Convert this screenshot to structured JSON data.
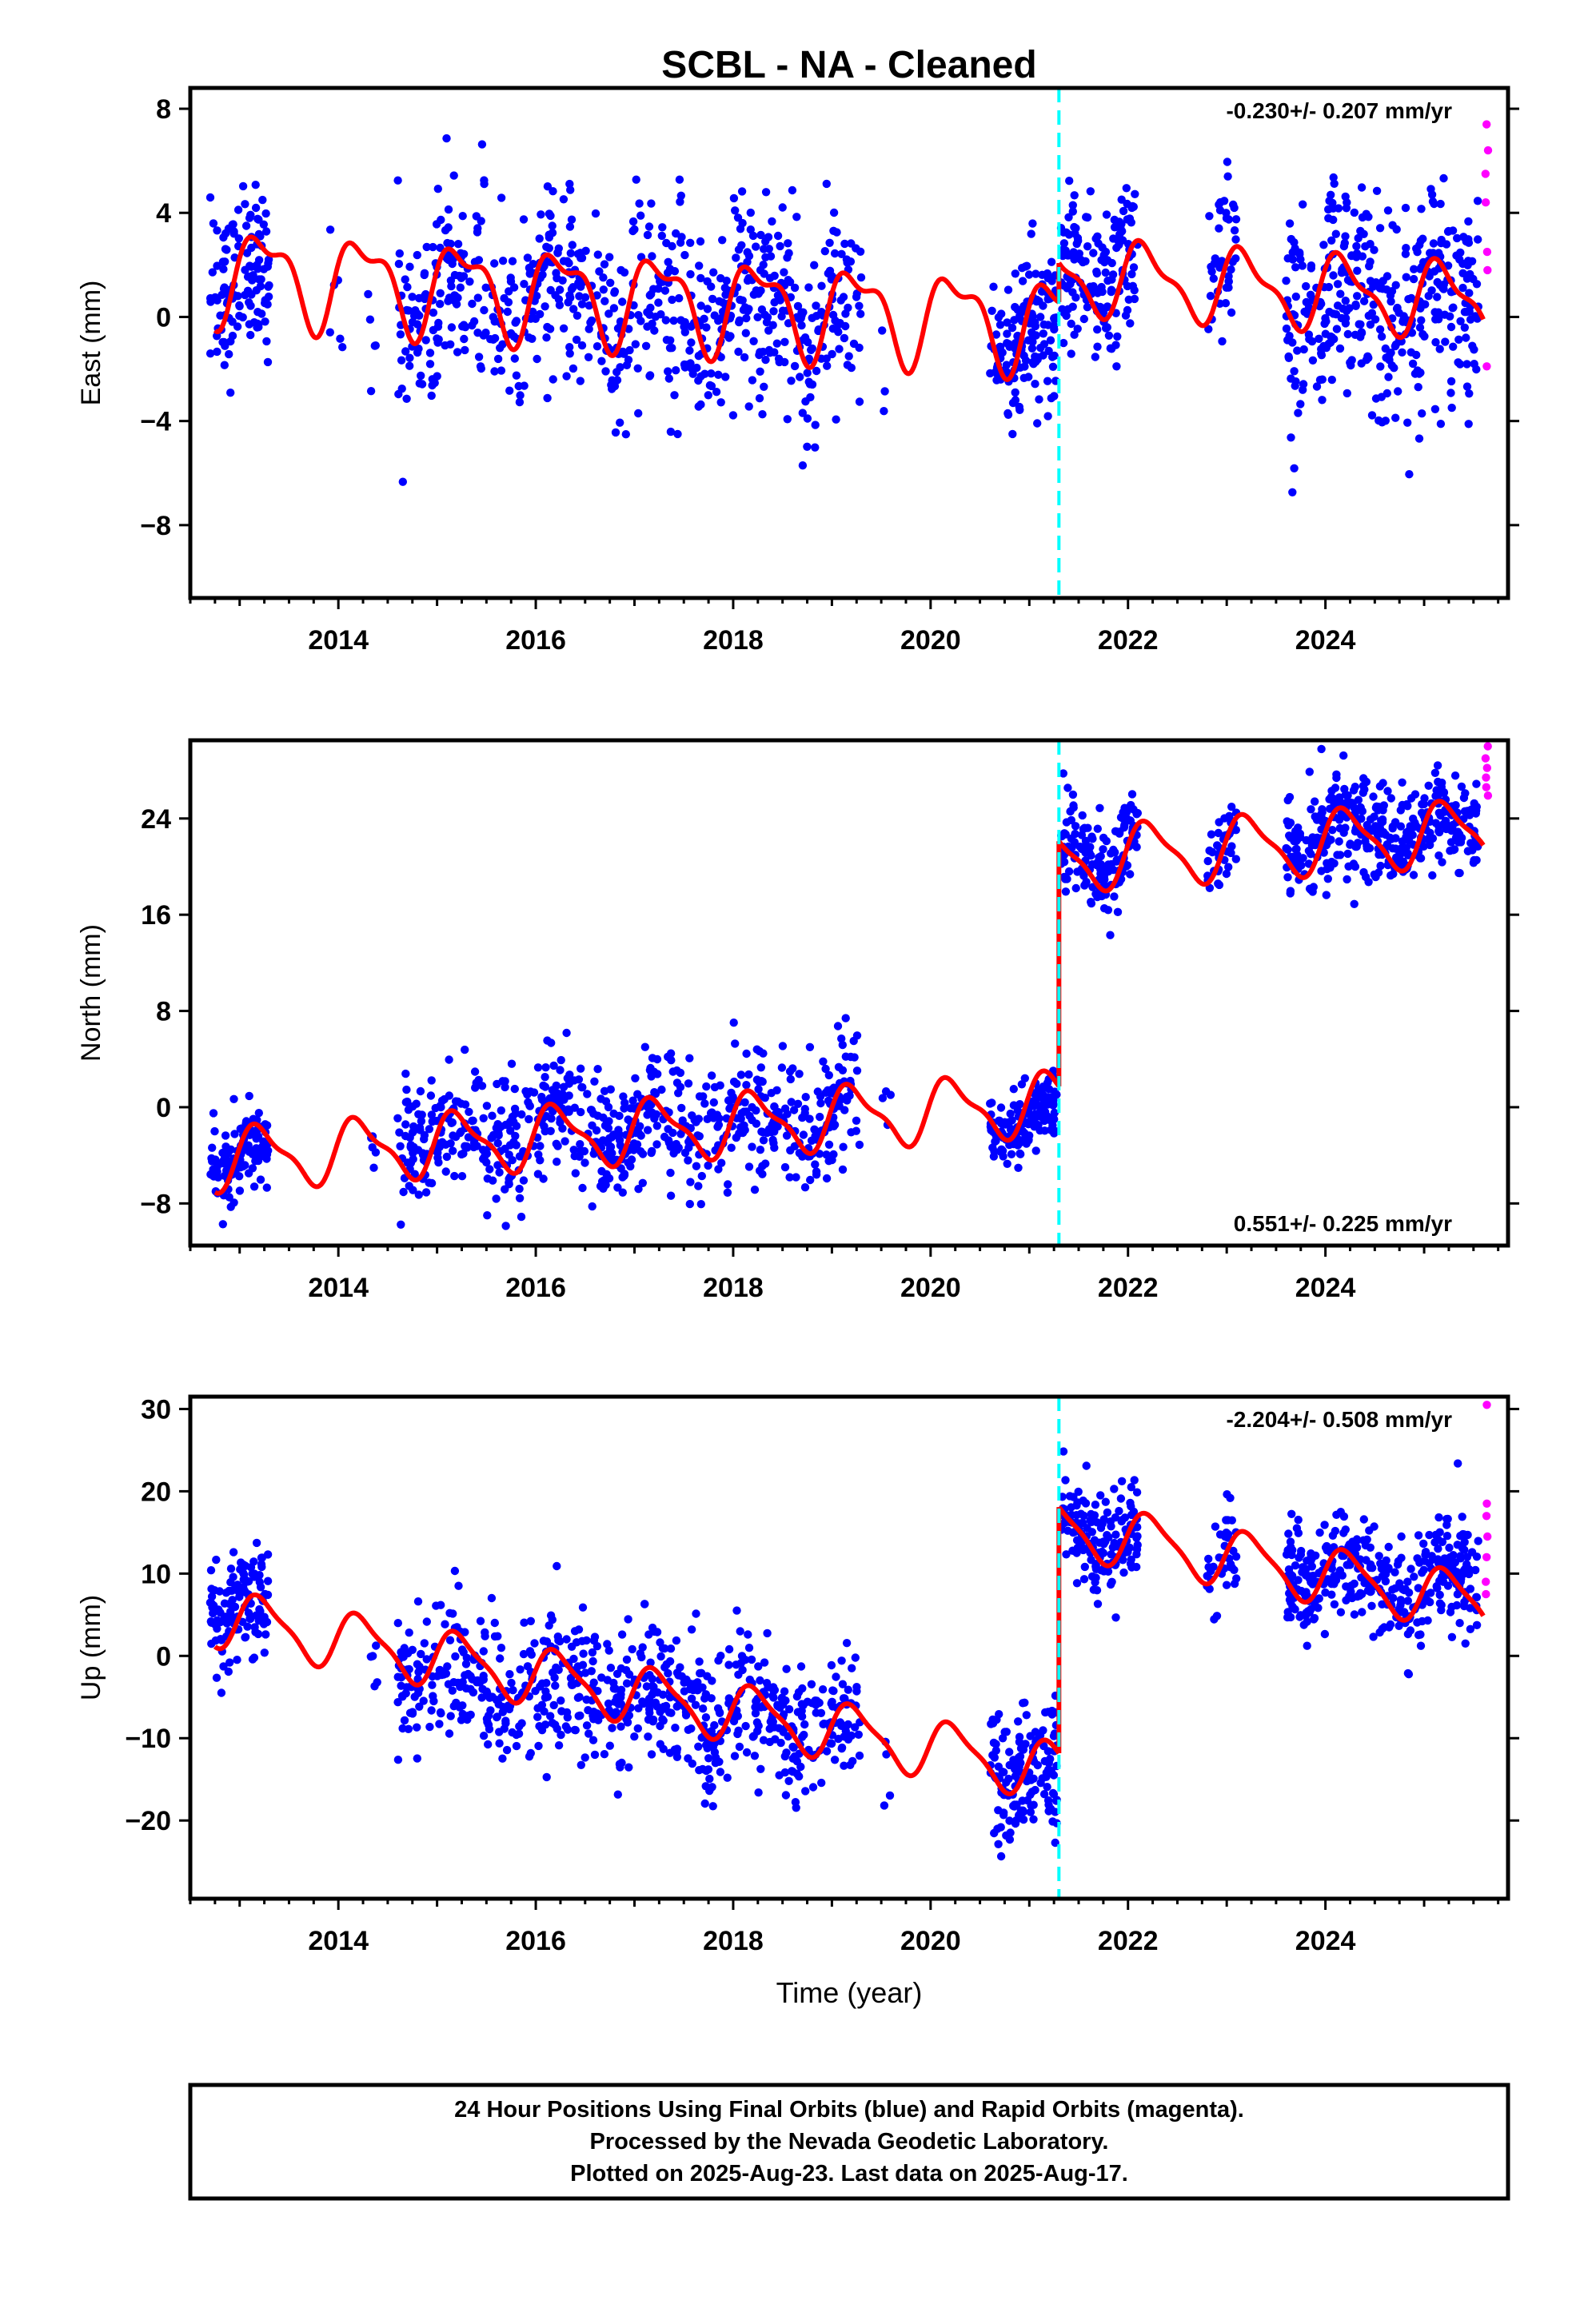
{
  "chart_data": {
    "type": "scatter",
    "title": "SCBL  - NA - Cleaned",
    "xlabel": "Time (year)",
    "xlim": [
      2012.5,
      2025.85
    ],
    "xticks": [
      2014,
      2016,
      2018,
      2020,
      2022,
      2024
    ],
    "event_line": {
      "x": 2021.3,
      "color": "#00ffff",
      "style": "dashed"
    },
    "colors": {
      "final": "#0000ff",
      "rapid": "#ff00ff",
      "model": "#ff0000"
    },
    "panels": [
      {
        "id": "east",
        "ylabel": "East (mm)",
        "ylim": [
          -10.8,
          8.8
        ],
        "yticks": [
          8,
          4,
          0,
          -4,
          -8
        ],
        "rate": "-0.230+/- 0.207 mm/yr",
        "rate_pos": "top-right",
        "model_segments": [
          {
            "x0": 2012.75,
            "x1": 2021.3,
            "a": 0.5,
            "b": -0.23,
            "t0": 2018,
            "harmonics": [
              {
                "c": 1.6,
                "p": 1.0,
                "f": 0.0
              },
              {
                "c": 0.7,
                "p": 0.5,
                "f": 1.1
              }
            ]
          },
          {
            "x0": 2021.3,
            "x1": 2025.6,
            "a": 1.2,
            "b": -0.23,
            "t0": 2023,
            "harmonics": [
              {
                "c": 1.3,
                "p": 1.0,
                "f": 0.4
              },
              {
                "c": 0.5,
                "p": 0.5,
                "f": 0.9
              }
            ]
          }
        ],
        "final_data": [
          {
            "from": 2012.7,
            "to": 2013.3,
            "count": 120,
            "base": 1.2,
            "spread": 1.6
          },
          {
            "from": 2013.9,
            "to": 2014.1,
            "count": 6,
            "base": -1.5,
            "spread": 2.5
          },
          {
            "from": 2014.3,
            "to": 2014.4,
            "count": 5,
            "base": -3.5,
            "spread": 2.0
          },
          {
            "from": 2014.6,
            "to": 2019.3,
            "count": 700,
            "base": -0.2,
            "spread": 1.8
          },
          {
            "from": 2019.5,
            "to": 2019.6,
            "count": 3,
            "base": -2.0,
            "spread": 3.0
          },
          {
            "from": 2020.6,
            "to": 2021.28,
            "count": 150,
            "base": -1.0,
            "spread": 1.5
          },
          {
            "from": 2021.32,
            "to": 2022.1,
            "count": 160,
            "base": 2.0,
            "spread": 1.6
          },
          {
            "from": 2022.8,
            "to": 2023.1,
            "count": 40,
            "base": 2.5,
            "spread": 1.6
          },
          {
            "from": 2023.6,
            "to": 2025.55,
            "count": 380,
            "base": 0.0,
            "spread": 2.0
          }
        ],
        "rapid_values": [
          7.4,
          6.4,
          5.5,
          4.4,
          2.5,
          1.8,
          -1.9
        ]
      },
      {
        "id": "north",
        "ylabel": "North (mm)",
        "ylim": [
          -11.5,
          30.5
        ],
        "yticks": [
          24,
          16,
          8,
          0,
          -8
        ],
        "rate": "0.551+/- 0.225 mm/yr",
        "rate_pos": "bottom-right",
        "model_segments": [
          {
            "x0": 2012.75,
            "x1": 2021.3,
            "a": -2.0,
            "b": 0.551,
            "t0": 2017,
            "harmonics": [
              {
                "c": 2.4,
                "p": 1.0,
                "f": 0.2
              },
              {
                "c": 0.8,
                "p": 0.5,
                "f": 0.5
              }
            ]
          },
          {
            "x0": 2021.3,
            "x1": 2025.6,
            "a": 21.5,
            "b": 0.551,
            "t0": 2023,
            "harmonics": [
              {
                "c": 2.5,
                "p": 1.0,
                "f": 0.2
              },
              {
                "c": 0.7,
                "p": 0.5,
                "f": 0.5
              }
            ]
          }
        ],
        "final_data": [
          {
            "from": 2012.7,
            "to": 2013.3,
            "count": 120,
            "base": -4.5,
            "spread": 1.6
          },
          {
            "from": 2014.3,
            "to": 2014.4,
            "count": 5,
            "base": -3.5,
            "spread": 1.5
          },
          {
            "from": 2014.6,
            "to": 2019.3,
            "count": 700,
            "base": -1.0,
            "spread": 2.6
          },
          {
            "from": 2019.5,
            "to": 2019.6,
            "count": 4,
            "base": 2.5,
            "spread": 1.5
          },
          {
            "from": 2020.6,
            "to": 2021.28,
            "count": 150,
            "base": -2.0,
            "spread": 1.5
          },
          {
            "from": 2021.32,
            "to": 2022.1,
            "count": 160,
            "base": 22.0,
            "spread": 2.0
          },
          {
            "from": 2022.8,
            "to": 2023.1,
            "count": 40,
            "base": 21.5,
            "spread": 1.5
          },
          {
            "from": 2023.6,
            "to": 2025.55,
            "count": 380,
            "base": 23.5,
            "spread": 2.0
          }
        ],
        "rapid_values": [
          30.0,
          29.0,
          28.2,
          27.4,
          26.6,
          25.9
        ]
      },
      {
        "id": "up",
        "ylabel": "Up (mm)",
        "ylim": [
          -29.5,
          31.5
        ],
        "yticks": [
          30,
          20,
          10,
          0,
          -10,
          -20
        ],
        "rate": "-2.204+/- 0.508 mm/yr",
        "rate_pos": "top-right",
        "model_segments": [
          {
            "x0": 2012.75,
            "x1": 2021.3,
            "a": -4.6,
            "b": -2.204,
            "t0": 2017,
            "harmonics": [
              {
                "c": 3.3,
                "p": 1.0,
                "f": 0.1
              },
              {
                "c": 0.9,
                "p": 0.5,
                "f": 0.4
              }
            ]
          },
          {
            "x0": 2021.3,
            "x1": 2025.6,
            "a": 12.0,
            "b": -2.204,
            "t0": 2023,
            "harmonics": [
              {
                "c": 3.3,
                "p": 1.0,
                "f": 0.1
              },
              {
                "c": 0.8,
                "p": 0.5,
                "f": 0.4
              }
            ]
          }
        ],
        "final_data": [
          {
            "from": 2012.7,
            "to": 2013.3,
            "count": 120,
            "base": 6.0,
            "spread": 3.5
          },
          {
            "from": 2014.3,
            "to": 2014.4,
            "count": 5,
            "base": -3.0,
            "spread": 2.5
          },
          {
            "from": 2014.6,
            "to": 2019.3,
            "count": 700,
            "base": -6.0,
            "spread": 4.2
          },
          {
            "from": 2019.5,
            "to": 2019.6,
            "count": 4,
            "base": -13.0,
            "spread": 3.0
          },
          {
            "from": 2020.6,
            "to": 2021.28,
            "count": 150,
            "base": -15.0,
            "spread": 3.5
          },
          {
            "from": 2021.32,
            "to": 2022.1,
            "count": 160,
            "base": 15.5,
            "spread": 3.0
          },
          {
            "from": 2022.8,
            "to": 2023.1,
            "count": 40,
            "base": 12.0,
            "spread": 3.0
          },
          {
            "from": 2023.6,
            "to": 2025.55,
            "count": 380,
            "base": 10.0,
            "spread": 3.3
          }
        ],
        "rapid_values": [
          30.5,
          18.5,
          17.0,
          14.5,
          12.0,
          9.0,
          7.5
        ]
      }
    ]
  },
  "footer": {
    "line1": "24 Hour Positions Using Final Orbits (blue) and Rapid Orbits (magenta).",
    "line2": "Processed by the Nevada Geodetic Laboratory.",
    "line3": "Plotted on 2025-Aug-23. Last data on 2025-Aug-17."
  }
}
